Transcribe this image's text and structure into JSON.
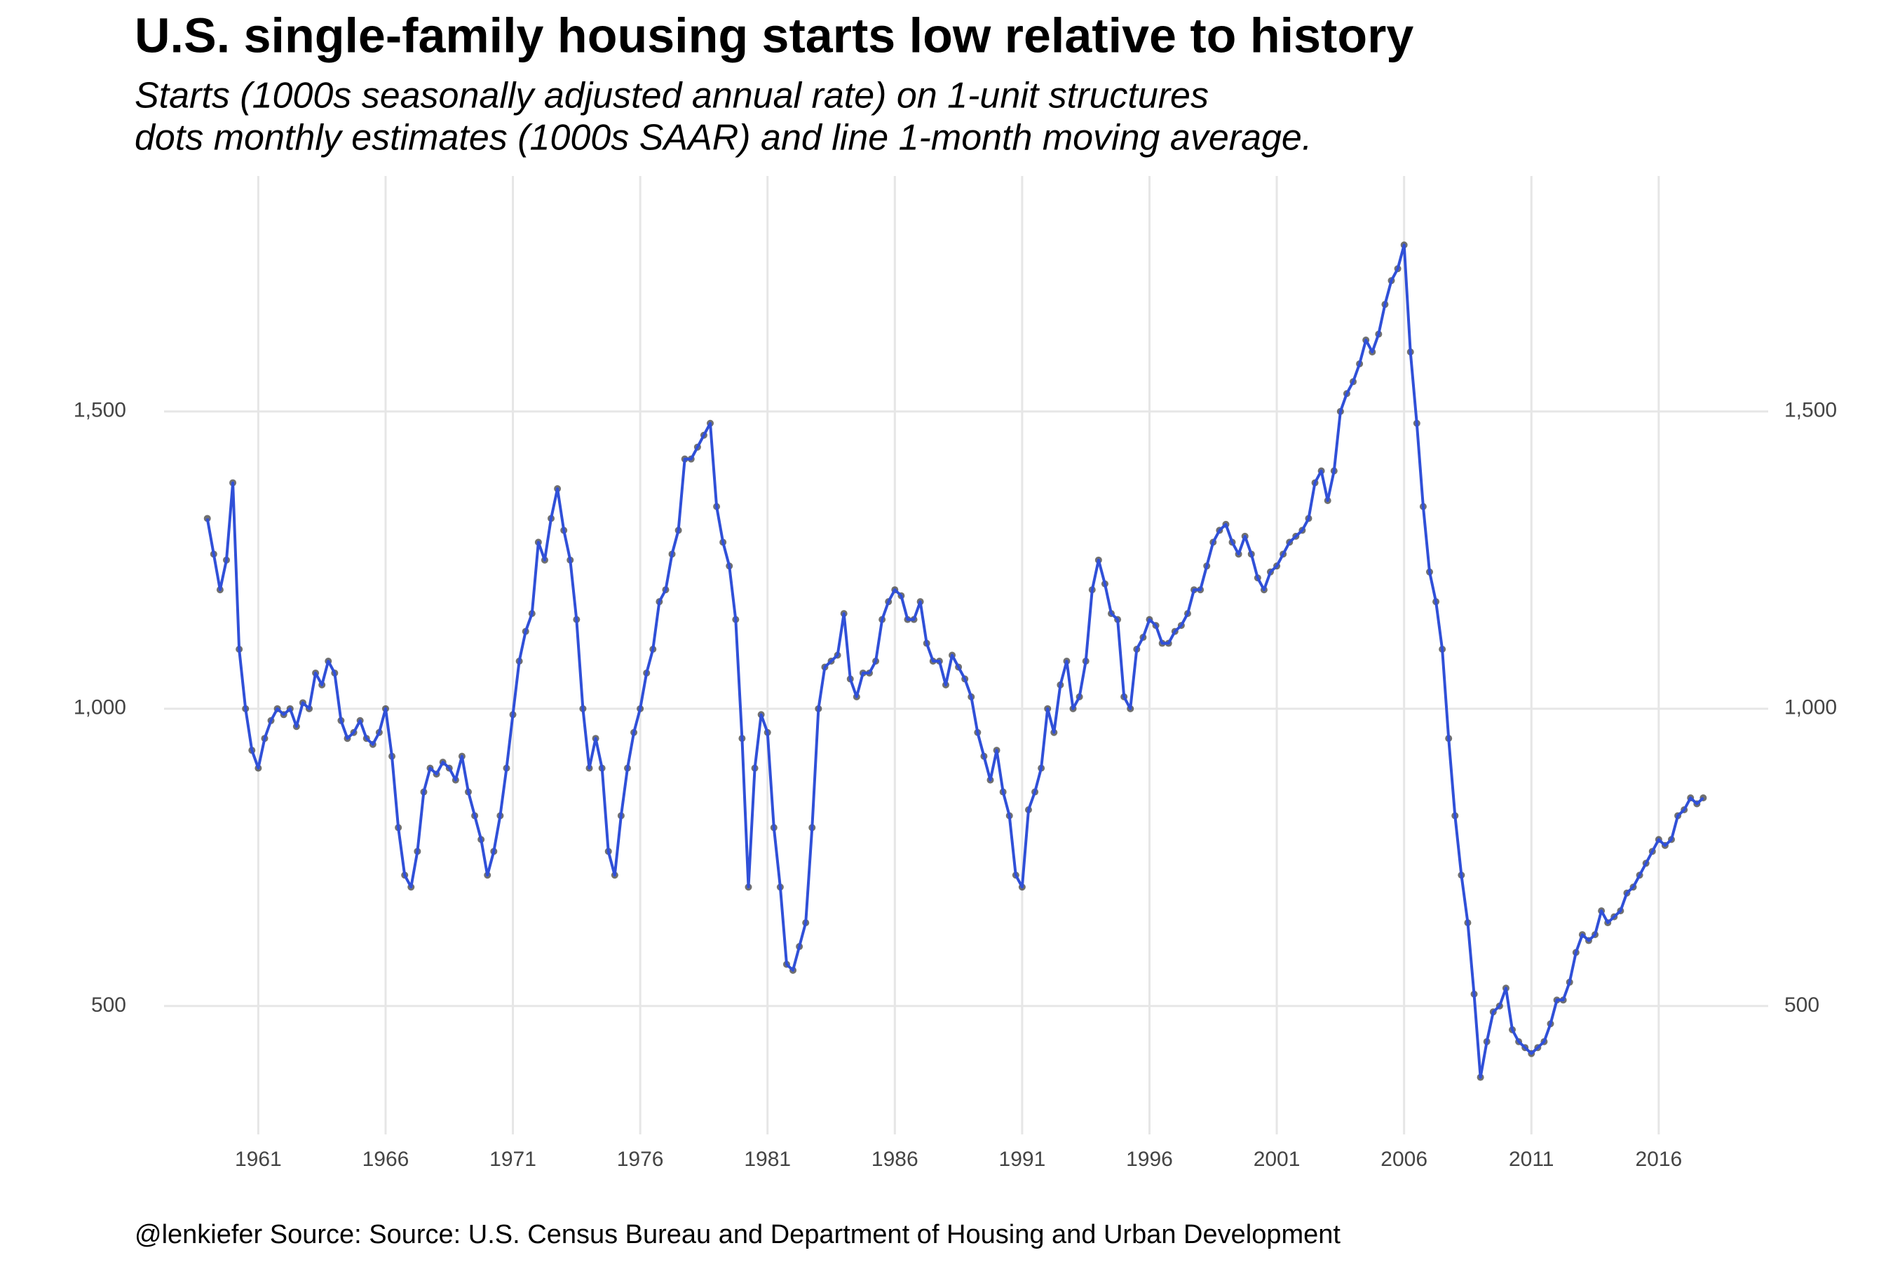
{
  "chart_data": {
    "type": "line",
    "title": "U.S. single-family housing starts low relative to history",
    "subtitle": [
      "Starts (1000s seasonally adjusted annual rate) on 1-unit structures",
      "dots monthly estimates (1000s SAAR) and line 1-month moving average."
    ],
    "caption": "@lenkiefer Source: Source: U.S. Census Bureau and Department of Housing and Urban Development",
    "color": "#3050d8",
    "point_color": "#333333",
    "grid": true,
    "xlim": [
      1957.3,
      2020.3
    ],
    "xticks": [
      1961,
      1966,
      1971,
      1976,
      1981,
      1986,
      1991,
      1996,
      2001,
      2006,
      2011,
      2016
    ],
    "ylim": [
      284,
      1896
    ],
    "yticks": [
      {
        "value": 500,
        "label": "500"
      },
      {
        "value": 1000,
        "label": "1,000"
      },
      {
        "value": 1500,
        "label": "1,500"
      }
    ],
    "x": [
      1959,
      1959.25,
      1959.5,
      1959.75,
      1960,
      1960.25,
      1960.5,
      1960.75,
      1961,
      1961.25,
      1961.5,
      1961.75,
      1962,
      1962.25,
      1962.5,
      1962.75,
      1963,
      1963.25,
      1963.5,
      1963.75,
      1964,
      1964.25,
      1964.5,
      1964.75,
      1965,
      1965.25,
      1965.5,
      1965.75,
      1966,
      1966.25,
      1966.5,
      1966.75,
      1967,
      1967.25,
      1967.5,
      1967.75,
      1968,
      1968.25,
      1968.5,
      1968.75,
      1969,
      1969.25,
      1969.5,
      1969.75,
      1970,
      1970.25,
      1970.5,
      1970.75,
      1971,
      1971.25,
      1971.5,
      1971.75,
      1972,
      1972.25,
      1972.5,
      1972.75,
      1973,
      1973.25,
      1973.5,
      1973.75,
      1974,
      1974.25,
      1974.5,
      1974.75,
      1975,
      1975.25,
      1975.5,
      1975.75,
      1976,
      1976.25,
      1976.5,
      1976.75,
      1977,
      1977.25,
      1977.5,
      1977.75,
      1978,
      1978.25,
      1978.5,
      1978.75,
      1979,
      1979.25,
      1979.5,
      1979.75,
      1980,
      1980.25,
      1980.5,
      1980.75,
      1981,
      1981.25,
      1981.5,
      1981.75,
      1982,
      1982.25,
      1982.5,
      1982.75,
      1983,
      1983.25,
      1983.5,
      1983.75,
      1984,
      1984.25,
      1984.5,
      1984.75,
      1985,
      1985.25,
      1985.5,
      1985.75,
      1986,
      1986.25,
      1986.5,
      1986.75,
      1987,
      1987.25,
      1987.5,
      1987.75,
      1988,
      1988.25,
      1988.5,
      1988.75,
      1989,
      1989.25,
      1989.5,
      1989.75,
      1990,
      1990.25,
      1990.5,
      1990.75,
      1991,
      1991.25,
      1991.5,
      1991.75,
      1992,
      1992.25,
      1992.5,
      1992.75,
      1993,
      1993.25,
      1993.5,
      1993.75,
      1994,
      1994.25,
      1994.5,
      1994.75,
      1995,
      1995.25,
      1995.5,
      1995.75,
      1996,
      1996.25,
      1996.5,
      1996.75,
      1997,
      1997.25,
      1997.5,
      1997.75,
      1998,
      1998.25,
      1998.5,
      1998.75,
      1999,
      1999.25,
      1999.5,
      1999.75,
      2000,
      2000.25,
      2000.5,
      2000.75,
      2001,
      2001.25,
      2001.5,
      2001.75,
      2002,
      2002.25,
      2002.5,
      2002.75,
      2003,
      2003.25,
      2003.5,
      2003.75,
      2004,
      2004.25,
      2004.5,
      2004.75,
      2005,
      2005.25,
      2005.5,
      2005.75,
      2006,
      2006.25,
      2006.5,
      2006.75,
      2007,
      2007.25,
      2007.5,
      2007.75,
      2008,
      2008.25,
      2008.5,
      2008.75,
      2009,
      2009.25,
      2009.5,
      2009.75,
      2010,
      2010.25,
      2010.5,
      2010.75,
      2011,
      2011.25,
      2011.5,
      2011.75,
      2012,
      2012.25,
      2012.5,
      2012.75,
      2013,
      2013.25,
      2013.5,
      2013.75,
      2014,
      2014.25,
      2014.5,
      2014.75,
      2015,
      2015.25,
      2015.5,
      2015.75,
      2016,
      2016.25,
      2016.5,
      2016.75,
      2017,
      2017.25,
      2017.5,
      2017.75
    ],
    "values": [
      1320,
      1260,
      1200,
      1250,
      1380,
      1100,
      1000,
      930,
      900,
      950,
      980,
      1000,
      990,
      1000,
      970,
      1010,
      1000,
      1060,
      1040,
      1080,
      1060,
      980,
      950,
      960,
      980,
      950,
      940,
      960,
      1000,
      920,
      800,
      720,
      700,
      760,
      860,
      900,
      890,
      910,
      900,
      880,
      920,
      860,
      820,
      780,
      720,
      760,
      820,
      900,
      990,
      1080,
      1130,
      1160,
      1280,
      1250,
      1320,
      1370,
      1300,
      1250,
      1150,
      1000,
      900,
      950,
      900,
      760,
      720,
      820,
      900,
      960,
      1000,
      1060,
      1100,
      1180,
      1200,
      1260,
      1300,
      1420,
      1420,
      1440,
      1460,
      1480,
      1340,
      1280,
      1240,
      1150,
      950,
      700,
      900,
      990,
      960,
      800,
      700,
      570,
      560,
      600,
      640,
      800,
      1000,
      1070,
      1080,
      1090,
      1160,
      1050,
      1020,
      1060,
      1060,
      1080,
      1150,
      1180,
      1200,
      1190,
      1150,
      1150,
      1180,
      1110,
      1080,
      1080,
      1040,
      1090,
      1070,
      1050,
      1020,
      960,
      920,
      880,
      930,
      860,
      820,
      720,
      700,
      830,
      860,
      900,
      1000,
      960,
      1040,
      1080,
      1000,
      1020,
      1080,
      1200,
      1250,
      1210,
      1160,
      1150,
      1020,
      1000,
      1100,
      1120,
      1150,
      1140,
      1110,
      1110,
      1130,
      1140,
      1160,
      1200,
      1200,
      1240,
      1280,
      1300,
      1310,
      1280,
      1260,
      1290,
      1260,
      1220,
      1200,
      1230,
      1240,
      1260,
      1280,
      1290,
      1300,
      1320,
      1380,
      1400,
      1350,
      1400,
      1500,
      1530,
      1550,
      1580,
      1620,
      1600,
      1630,
      1680,
      1720,
      1740,
      1780,
      1600,
      1480,
      1340,
      1230,
      1180,
      1100,
      950,
      820,
      720,
      640,
      520,
      380,
      440,
      490,
      500,
      530,
      460,
      440,
      430,
      420,
      430,
      440,
      470,
      510,
      510,
      540,
      590,
      620,
      610,
      620,
      660,
      640,
      650,
      660,
      690,
      700,
      720,
      740,
      760,
      780,
      770,
      780,
      820,
      830,
      850,
      840,
      850
    ]
  }
}
